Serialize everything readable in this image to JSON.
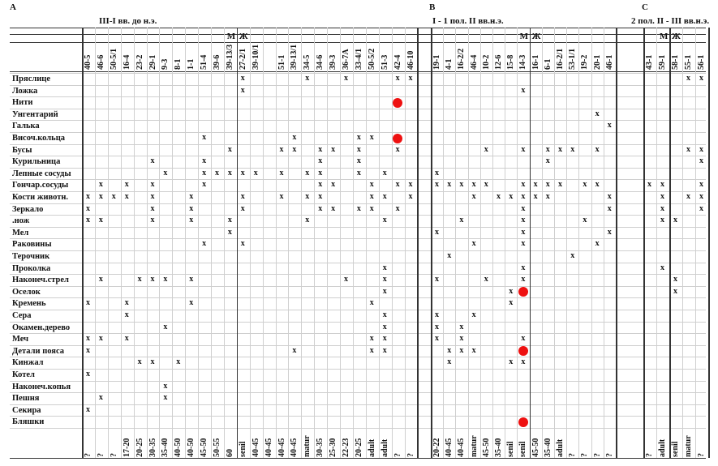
{
  "sections": [
    {
      "letter": "A",
      "period": "III-I вв. до н.э.",
      "sexes": {
        "male": "М",
        "female": "Ж"
      },
      "male_cols": [
        "40-5",
        "46-6",
        "50-5/1",
        "16-4",
        "23-2",
        "29-1",
        "9-3",
        "8-1",
        "1-1",
        "51-4",
        "39-6",
        "39-13/3"
      ],
      "female_cols": [
        "27-2/1",
        "39-10/1",
        "",
        "51-1",
        "39-13/1",
        "34-5",
        "34-6",
        "39-3",
        "36-7A",
        "33-4/1",
        "50-5/2",
        "51-3",
        "42-4",
        "46-10"
      ],
      "male_ages": [
        "?",
        "?",
        "?",
        "17-20",
        "20-25",
        "30-35",
        "35-40",
        "40-50",
        "40-50",
        "45-50",
        "50-55",
        "60"
      ],
      "female_ages": [
        "senil",
        "40-45",
        "40-45",
        "40-45",
        "40-45",
        "matur",
        "30-35",
        "25-30",
        "22-23",
        "20-25",
        "adult",
        "adult",
        "?",
        "?"
      ]
    },
    {
      "letter": "B",
      "period": "I - 1 пол. II вв.н.э.",
      "sexes": {
        "male": "М",
        "female": "Ж"
      },
      "male_cols": [
        "19-1",
        "4-1",
        "16-2/2",
        "46-4",
        "10-2",
        "12-6",
        "15-8",
        "14-3"
      ],
      "female_cols": [
        "16-1",
        "6-1",
        "16-2/1",
        "53-1/1",
        "19-2",
        "20-1",
        "46-1"
      ],
      "male_ages": [
        "20-22",
        "40-45",
        "40-45",
        "matur",
        "45-50",
        "35-40",
        "senil",
        "senil"
      ],
      "female_ages": [
        "45-50",
        "35-40",
        "adult",
        "?",
        "?",
        "?",
        "?"
      ]
    },
    {
      "letter": "C",
      "period": "2 пол. II - III вв.н.э.",
      "sexes": {
        "male": "М",
        "female": "Ж"
      },
      "male_cols": [
        "43-1",
        "59-1"
      ],
      "female_cols": [
        "58-1",
        "55-1",
        "56-1"
      ],
      "male_ages": [
        "?",
        "adult"
      ],
      "female_ages": [
        "senil",
        "matur",
        "?"
      ]
    }
  ],
  "rows": [
    "Пряслице",
    "Ложка",
    "Нити",
    "Унгентарий",
    "Галька",
    "Височ.кольца",
    "Бусы",
    "Курильница",
    "Лепные сосуды",
    "Гончар.сосуды",
    "Кости животн.",
    "Зеркало",
    ".нож",
    "Мел",
    "Раковины",
    "Терочник",
    "Проколка",
    "Наконеч.стрел",
    "Оселок",
    "Кремень",
    "Сера",
    "Окамен.дерево",
    "Меч",
    "Детали пояса",
    "Кинжал",
    "Котел",
    "Наконеч.копья",
    "Пешня",
    "Секира",
    "Бляшки"
  ],
  "marks_legend": {
    "x": "x",
    "red_dot": "red-dot"
  },
  "cells": {
    "A": [
      [
        [
          12,
          "x"
        ],
        [
          17,
          "x"
        ],
        [
          20,
          "x"
        ],
        [
          24,
          "x"
        ],
        [
          25,
          "x"
        ]
      ],
      [
        [
          12,
          "x"
        ]
      ],
      [
        [
          24,
          "r"
        ]
      ],
      [],
      [],
      [
        [
          9,
          "x"
        ],
        [
          16,
          "x"
        ],
        [
          21,
          "x"
        ],
        [
          22,
          "x"
        ],
        [
          24,
          "r"
        ]
      ],
      [
        [
          11,
          "x"
        ],
        [
          15,
          "x"
        ],
        [
          16,
          "x"
        ],
        [
          18,
          "x"
        ],
        [
          19,
          "x"
        ],
        [
          21,
          "x"
        ],
        [
          24,
          "x"
        ]
      ],
      [
        [
          5,
          "x"
        ],
        [
          9,
          "x"
        ],
        [
          18,
          "x"
        ],
        [
          21,
          "x"
        ]
      ],
      [
        [
          6,
          "x"
        ],
        [
          9,
          "x"
        ],
        [
          10,
          "x"
        ],
        [
          11,
          "x"
        ],
        [
          12,
          "x"
        ],
        [
          13,
          "x"
        ],
        [
          15,
          "x"
        ],
        [
          17,
          "x"
        ],
        [
          18,
          "x"
        ],
        [
          21,
          "x"
        ],
        [
          23,
          "x"
        ]
      ],
      [
        [
          1,
          "x"
        ],
        [
          3,
          "x"
        ],
        [
          5,
          "x"
        ],
        [
          9,
          "x"
        ],
        [
          18,
          "x"
        ],
        [
          19,
          "x"
        ],
        [
          22,
          "x"
        ],
        [
          24,
          "x"
        ],
        [
          25,
          "x"
        ]
      ],
      [
        [
          0,
          "x"
        ],
        [
          1,
          "x"
        ],
        [
          2,
          "x"
        ],
        [
          3,
          "x"
        ],
        [
          5,
          "x"
        ],
        [
          8,
          "x"
        ],
        [
          12,
          "x"
        ],
        [
          15,
          "x"
        ],
        [
          17,
          "x"
        ],
        [
          18,
          "x"
        ],
        [
          22,
          "x"
        ],
        [
          23,
          "x"
        ],
        [
          25,
          "x"
        ]
      ],
      [
        [
          0,
          "x"
        ],
        [
          5,
          "x"
        ],
        [
          8,
          "x"
        ],
        [
          12,
          "x"
        ],
        [
          18,
          "x"
        ],
        [
          19,
          "x"
        ],
        [
          21,
          "x"
        ],
        [
          22,
          "x"
        ],
        [
          24,
          "x"
        ]
      ],
      [
        [
          0,
          "x"
        ],
        [
          1,
          "x"
        ],
        [
          5,
          "x"
        ],
        [
          8,
          "x"
        ],
        [
          11,
          "x"
        ],
        [
          17,
          "x"
        ],
        [
          23,
          "x"
        ]
      ],
      [
        [
          11,
          "x"
        ]
      ],
      [
        [
          9,
          "x"
        ],
        [
          12,
          "x"
        ]
      ],
      [],
      [
        [
          23,
          "x"
        ]
      ],
      [
        [
          1,
          "x"
        ],
        [
          4,
          "x"
        ],
        [
          5,
          "x"
        ],
        [
          6,
          "x"
        ],
        [
          8,
          "x"
        ],
        [
          20,
          "x"
        ],
        [
          23,
          "x"
        ]
      ],
      [
        [
          23,
          "x"
        ]
      ],
      [
        [
          0,
          "x"
        ],
        [
          3,
          "x"
        ],
        [
          8,
          "x"
        ],
        [
          22,
          "x"
        ]
      ],
      [
        [
          3,
          "x"
        ],
        [
          23,
          "x"
        ]
      ],
      [
        [
          6,
          "x"
        ],
        [
          23,
          "x"
        ]
      ],
      [
        [
          0,
          "x"
        ],
        [
          1,
          "x"
        ],
        [
          3,
          "x"
        ],
        [
          22,
          "x"
        ],
        [
          23,
          "x"
        ]
      ],
      [
        [
          0,
          "x"
        ],
        [
          16,
          "x"
        ],
        [
          22,
          "x"
        ],
        [
          23,
          "x"
        ]
      ],
      [
        [
          4,
          "x"
        ],
        [
          5,
          "x"
        ],
        [
          7,
          "x"
        ]
      ],
      [
        [
          0,
          "x"
        ]
      ],
      [
        [
          6,
          "x"
        ]
      ],
      [
        [
          1,
          "x"
        ],
        [
          6,
          "x"
        ]
      ],
      [
        [
          0,
          "x"
        ]
      ],
      []
    ],
    "B": [
      [],
      [
        [
          7,
          "x"
        ]
      ],
      [],
      [
        [
          13,
          "x"
        ]
      ],
      [
        [
          14,
          "x"
        ]
      ],
      [],
      [
        [
          4,
          "x"
        ],
        [
          7,
          "x"
        ],
        [
          9,
          "x"
        ],
        [
          10,
          "x"
        ],
        [
          11,
          "x"
        ],
        [
          13,
          "x"
        ]
      ],
      [
        [
          9,
          "x"
        ]
      ],
      [
        [
          0,
          "x"
        ]
      ],
      [
        [
          0,
          "x"
        ],
        [
          1,
          "x"
        ],
        [
          2,
          "x"
        ],
        [
          3,
          "x"
        ],
        [
          4,
          "x"
        ],
        [
          7,
          "x"
        ],
        [
          8,
          "x"
        ],
        [
          9,
          "x"
        ],
        [
          10,
          "x"
        ],
        [
          12,
          "x"
        ],
        [
          13,
          "x"
        ]
      ],
      [
        [
          3,
          "x"
        ],
        [
          5,
          "x"
        ],
        [
          6,
          "x"
        ],
        [
          7,
          "x"
        ],
        [
          8,
          "x"
        ],
        [
          9,
          "x"
        ],
        [
          14,
          "x"
        ]
      ],
      [
        [
          7,
          "x"
        ],
        [
          14,
          "x"
        ]
      ],
      [
        [
          2,
          "x"
        ],
        [
          7,
          "x"
        ],
        [
          12,
          "x"
        ]
      ],
      [
        [
          0,
          "x"
        ],
        [
          7,
          "x"
        ],
        [
          14,
          "x"
        ]
      ],
      [
        [
          3,
          "x"
        ],
        [
          7,
          "x"
        ],
        [
          13,
          "x"
        ]
      ],
      [
        [
          1,
          "x"
        ],
        [
          11,
          "x"
        ]
      ],
      [
        [
          7,
          "x"
        ]
      ],
      [
        [
          0,
          "x"
        ],
        [
          4,
          "x"
        ],
        [
          7,
          "x"
        ]
      ],
      [
        [
          6,
          "x"
        ],
        [
          7,
          "r"
        ]
      ],
      [
        [
          6,
          "x"
        ]
      ],
      [
        [
          0,
          "x"
        ],
        [
          3,
          "x"
        ]
      ],
      [
        [
          0,
          "x"
        ],
        [
          2,
          "x"
        ]
      ],
      [
        [
          0,
          "x"
        ],
        [
          2,
          "x"
        ],
        [
          7,
          "x"
        ]
      ],
      [
        [
          1,
          "x"
        ],
        [
          2,
          "x"
        ],
        [
          3,
          "x"
        ],
        [
          7,
          "r"
        ]
      ],
      [
        [
          1,
          "x"
        ],
        [
          6,
          "x"
        ],
        [
          7,
          "x"
        ]
      ],
      [],
      [],
      [],
      [],
      [
        [
          7,
          "r"
        ]
      ]
    ],
    "C": [
      [
        [
          3,
          "x"
        ],
        [
          4,
          "x"
        ]
      ],
      [],
      [],
      [],
      [],
      [],
      [
        [
          3,
          "x"
        ],
        [
          4,
          "x"
        ]
      ],
      [
        [
          4,
          "x"
        ]
      ],
      [],
      [
        [
          0,
          "x"
        ],
        [
          1,
          "x"
        ],
        [
          4,
          "x"
        ]
      ],
      [
        [
          1,
          "x"
        ],
        [
          3,
          "x"
        ],
        [
          4,
          "x"
        ]
      ],
      [
        [
          1,
          "x"
        ],
        [
          4,
          "x"
        ]
      ],
      [
        [
          1,
          "x"
        ],
        [
          2,
          "x"
        ]
      ],
      [],
      [],
      [],
      [
        [
          1,
          "x"
        ]
      ],
      [
        [
          2,
          "x"
        ]
      ],
      [
        [
          2,
          "x"
        ]
      ],
      [],
      [],
      [],
      [],
      [],
      [],
      [],
      [],
      [],
      [],
      []
    ]
  }
}
